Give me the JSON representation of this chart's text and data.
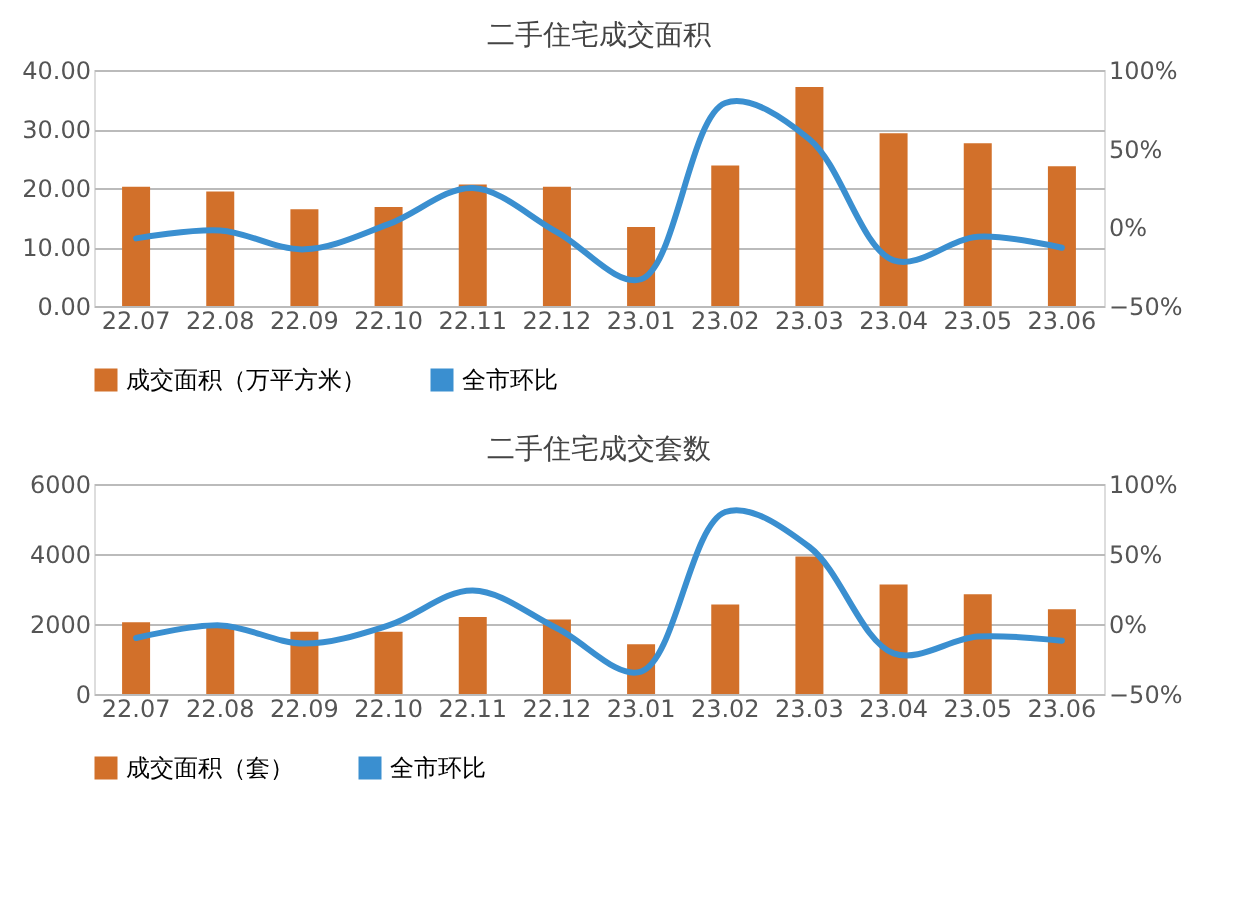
{
  "chart_data": [
    {
      "type": "bar",
      "title": "二手住宅成交面积",
      "categories": [
        "22.07",
        "22.08",
        "22.09",
        "22.10",
        "22.11",
        "22.12",
        "23.01",
        "23.02",
        "23.03",
        "23.04",
        "23.05",
        "23.06"
      ],
      "series": [
        {
          "name": "成交面积（万平方米）",
          "color": "#d2702a",
          "values": [
            20.2,
            19.4,
            16.4,
            16.8,
            20.6,
            20.2,
            13.4,
            23.8,
            37.1,
            29.3,
            27.6,
            23.7
          ]
        },
        {
          "name": "全市环比",
          "type": "line",
          "axis": "y2",
          "color": "#3a8fd0",
          "values": [
            -7,
            -2,
            -14,
            2,
            25,
            -3,
            -33,
            79,
            56,
            -21,
            -6,
            -13
          ]
        }
      ],
      "ylim": [
        0,
        40
      ],
      "yticks": [
        {
          "value": 0,
          "label": "0.00"
        },
        {
          "value": 10,
          "label": "10.00"
        },
        {
          "value": 20,
          "label": "20.00"
        },
        {
          "value": 30,
          "label": "30.00"
        },
        {
          "value": 40,
          "label": "40.00"
        }
      ],
      "y2lim": [
        -50,
        100
      ],
      "y2ticks": [
        {
          "value": -50,
          "label": "−50%"
        },
        {
          "value": 0,
          "label": "0%"
        },
        {
          "value": 50,
          "label": "50%"
        },
        {
          "value": 100,
          "label": "100%"
        }
      ],
      "grid": "y",
      "legend": "bottom",
      "marker": "none",
      "line_style": "solid"
    },
    {
      "type": "bar",
      "title": "二手住宅成交套数",
      "categories": [
        "22.07",
        "22.08",
        "22.09",
        "22.10",
        "22.11",
        "22.12",
        "23.01",
        "23.02",
        "23.03",
        "23.04",
        "23.05",
        "23.06"
      ],
      "series": [
        {
          "name": "成交面积（套）",
          "color": "#d2702a",
          "values": [
            2050,
            1950,
            1780,
            1780,
            2200,
            2130,
            1420,
            2560,
            3930,
            3130,
            2850,
            2420
          ]
        },
        {
          "name": "全市环比",
          "type": "line",
          "axis": "y2",
          "color": "#3a8fd0",
          "values": [
            -10,
            -1,
            -14,
            -1,
            24,
            -3,
            -34,
            80,
            55,
            -21,
            -9,
            -12
          ]
        }
      ],
      "ylim": [
        0,
        6000
      ],
      "yticks": [
        0,
        2000,
        4000,
        6000
      ],
      "y2lim": [
        -50,
        100
      ],
      "y2ticks": [
        {
          "value": -50,
          "label": "−50%"
        },
        {
          "value": 0,
          "label": "0%"
        },
        {
          "value": 50,
          "label": "50%"
        },
        {
          "value": 100,
          "label": "100%"
        }
      ],
      "grid": "y",
      "legend": "bottom",
      "marker": "none",
      "line_style": "solid"
    }
  ]
}
